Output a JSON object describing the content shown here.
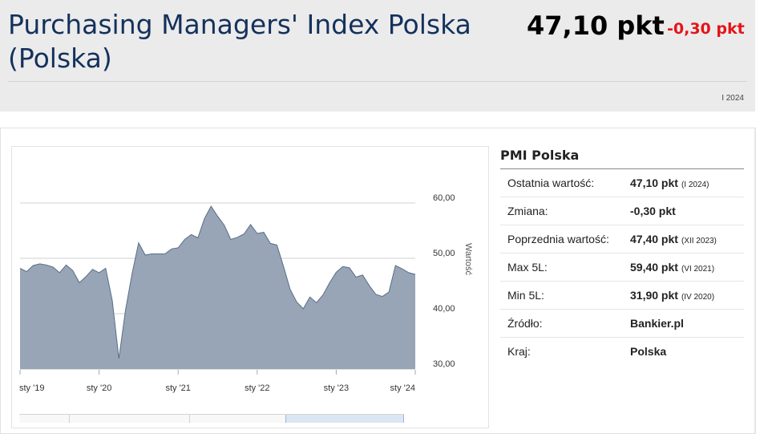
{
  "header": {
    "title": "Purchasing Managers' Index Polska (Polska)",
    "value": "47,10 pkt",
    "change": "-0,30 pkt",
    "period": "I 2024"
  },
  "info": {
    "title": "PMI Polska",
    "rows": [
      {
        "label": "Ostatnia wartość:",
        "value": "47,10 pkt",
        "date": "(I 2024)"
      },
      {
        "label": "Zmiana:",
        "value": "-0,30 pkt",
        "date": ""
      },
      {
        "label": "Poprzednia wartość:",
        "value": "47,40 pkt",
        "date": "(XII 2023)"
      },
      {
        "label": "Max 5L:",
        "value": "59,40 pkt",
        "date": "(VI 2021)"
      },
      {
        "label": "Min 5L:",
        "value": "31,90 pkt",
        "date": "(IV 2020)"
      },
      {
        "label": "Źródło:",
        "value": "Bankier.pl",
        "date": ""
      },
      {
        "label": "Kraj:",
        "value": "Polska",
        "date": ""
      }
    ]
  },
  "colors": {
    "title": "#14315d",
    "negative": "#e3151a",
    "area_fill": "#97a5b6",
    "area_line": "#5a6e86"
  },
  "chart_data": {
    "type": "area",
    "ylabel": "Wartość",
    "ylim": [
      30,
      60
    ],
    "yticks": [
      30,
      40,
      50,
      60
    ],
    "ytick_labels": [
      "30,00",
      "40,00",
      "50,00",
      "60,00"
    ],
    "xlim": [
      "2019-01",
      "2024-01"
    ],
    "xticks": [
      "2019-01",
      "2020-01",
      "2021-01",
      "2022-01",
      "2023-01",
      "2024-01"
    ],
    "xtick_labels": [
      "sty '19",
      "sty '20",
      "sty '21",
      "sty '22",
      "sty '23",
      "sty '24"
    ],
    "x": [
      "2019-01",
      "2019-02",
      "2019-03",
      "2019-04",
      "2019-05",
      "2019-06",
      "2019-07",
      "2019-08",
      "2019-09",
      "2019-10",
      "2019-11",
      "2019-12",
      "2020-01",
      "2020-02",
      "2020-03",
      "2020-04",
      "2020-05",
      "2020-06",
      "2020-07",
      "2020-08",
      "2020-09",
      "2020-10",
      "2020-11",
      "2020-12",
      "2021-01",
      "2021-02",
      "2021-03",
      "2021-04",
      "2021-05",
      "2021-06",
      "2021-07",
      "2021-08",
      "2021-09",
      "2021-10",
      "2021-11",
      "2021-12",
      "2022-01",
      "2022-02",
      "2022-03",
      "2022-04",
      "2022-05",
      "2022-06",
      "2022-07",
      "2022-08",
      "2022-09",
      "2022-10",
      "2022-11",
      "2022-12",
      "2023-01",
      "2023-02",
      "2023-03",
      "2023-04",
      "2023-05",
      "2023-06",
      "2023-07",
      "2023-08",
      "2023-09",
      "2023-10",
      "2023-11",
      "2023-12",
      "2024-01"
    ],
    "values": [
      48.2,
      47.6,
      48.7,
      49.0,
      48.8,
      48.4,
      47.4,
      48.8,
      47.8,
      45.6,
      46.7,
      48.0,
      47.4,
      48.2,
      42.4,
      31.9,
      40.6,
      47.2,
      52.8,
      50.6,
      50.8,
      50.8,
      50.8,
      51.7,
      51.9,
      53.4,
      54.3,
      53.7,
      57.2,
      59.4,
      57.6,
      56.0,
      53.4,
      53.8,
      54.4,
      56.1,
      54.5,
      54.7,
      52.7,
      52.4,
      48.5,
      44.4,
      42.1,
      40.9,
      43.0,
      42.0,
      43.4,
      45.6,
      47.5,
      48.5,
      48.3,
      46.6,
      47.0,
      45.1,
      43.5,
      43.1,
      43.9,
      48.7,
      48.1,
      47.4,
      47.1
    ]
  }
}
